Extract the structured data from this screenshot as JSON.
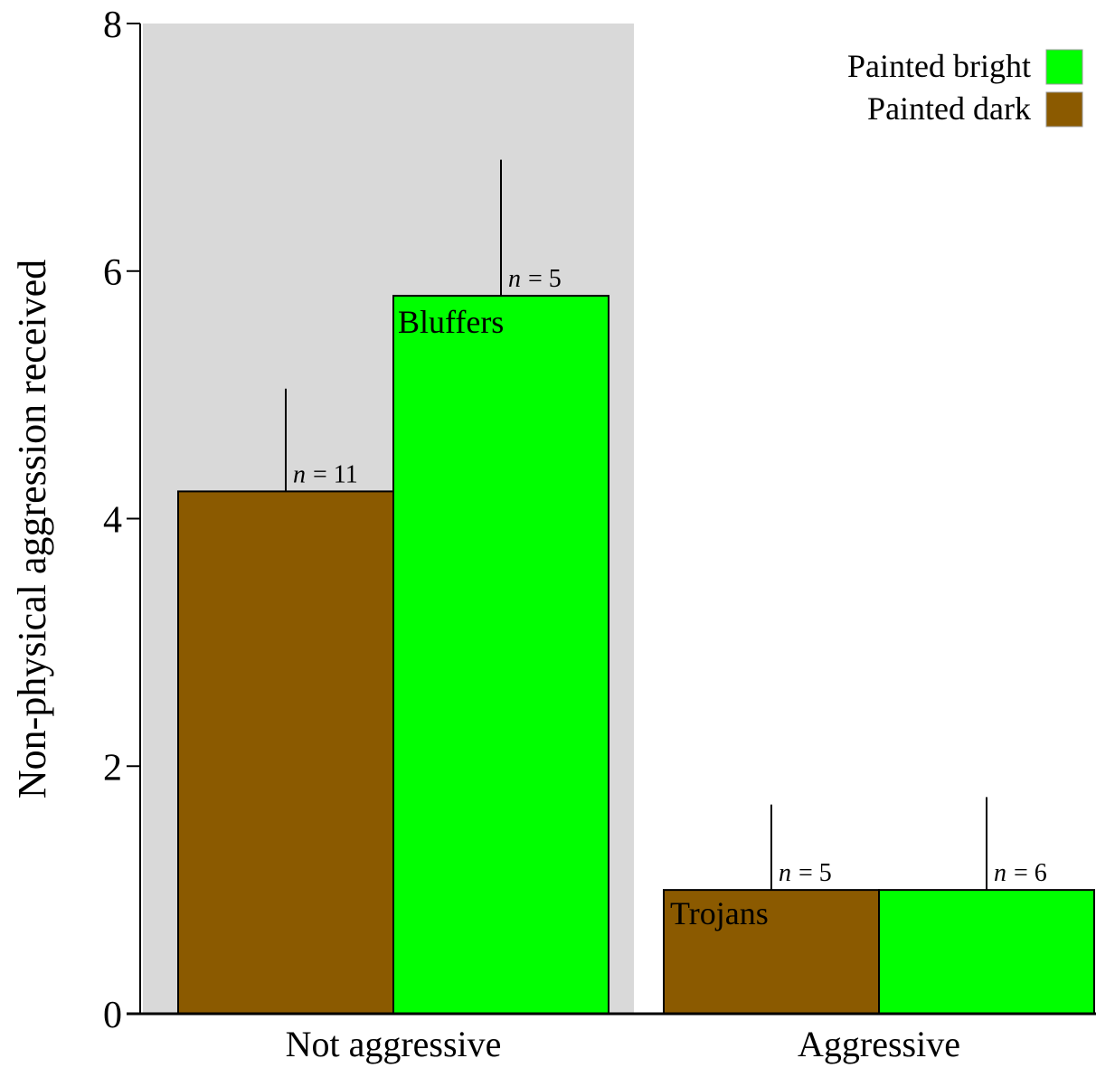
{
  "chart_data": {
    "type": "bar",
    "y_label": "Non-physical aggression received",
    "categories": [
      "Not aggressive",
      "Aggressive"
    ],
    "series": [
      {
        "name": "Painted dark",
        "color": "#8b5a00",
        "values": [
          4.22,
          1.0
        ],
        "errors": [
          0.83,
          0.69
        ],
        "n_labels": [
          "= 11",
          "= 5"
        ]
      },
      {
        "name": "Painted bright",
        "color": "#00ff00",
        "values": [
          5.8,
          1.0
        ],
        "errors": [
          1.1,
          0.75
        ],
        "n_labels": [
          "= 5",
          "= 6"
        ]
      }
    ],
    "n_symbol": "n",
    "annotations": [
      "Bluffers",
      "Trojans"
    ],
    "ylim": [
      0,
      8
    ],
    "yticks": [
      0,
      2,
      4,
      6,
      8
    ],
    "shaded_category": 0,
    "shade_color": "#d9d9d9",
    "legend": "top-right"
  }
}
